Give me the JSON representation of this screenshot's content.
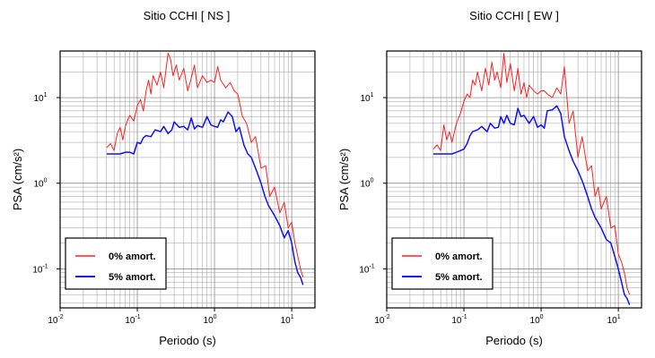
{
  "chart_data": [
    {
      "type": "line",
      "title": "Sitio CCHI [ NS ]",
      "xlabel": "Periodo (s)",
      "ylabel": "PSA (cm/s²)",
      "xscale": "log",
      "yscale": "log",
      "xlim": [
        0.01,
        20
      ],
      "ylim": [
        0.035,
        35
      ],
      "xticks": [
        {
          "label": "10",
          "exp": "-2"
        },
        {
          "label": "10",
          "exp": "-1"
        },
        {
          "label": "10",
          "exp": "0"
        },
        {
          "label": "10",
          "exp": "1"
        }
      ],
      "yticks": [
        {
          "label": "10",
          "exp": "-1"
        },
        {
          "label": "10",
          "exp": "0"
        },
        {
          "label": "10",
          "exp": "1"
        }
      ],
      "grid": true,
      "legend_position": "bottom-left",
      "series": [
        {
          "name": "0% amort.",
          "color": "#ff2020",
          "x": [
            0.04,
            0.045,
            0.05,
            0.055,
            0.06,
            0.065,
            0.07,
            0.075,
            0.08,
            0.09,
            0.1,
            0.11,
            0.12,
            0.13,
            0.14,
            0.15,
            0.16,
            0.18,
            0.2,
            0.22,
            0.25,
            0.27,
            0.29,
            0.32,
            0.35,
            0.4,
            0.45,
            0.5,
            0.55,
            0.6,
            0.7,
            0.8,
            0.9,
            1.0,
            1.1,
            1.2,
            1.4,
            1.6,
            1.8,
            2.0,
            2.3,
            2.6,
            3.0,
            3.4,
            4.0,
            4.6,
            5.2,
            6.0,
            7.0,
            8.0,
            9.0,
            10.0,
            11.0,
            12.0,
            13.0,
            14.0
          ],
          "y": [
            2.6,
            2.9,
            2.4,
            3.8,
            4.5,
            3.2,
            4.6,
            5.5,
            6.2,
            5.3,
            8.0,
            9.5,
            7.0,
            12.0,
            16.0,
            11.0,
            18.0,
            14.0,
            20.0,
            13.0,
            33.0,
            28.0,
            18.0,
            24.0,
            16.0,
            22.0,
            12.0,
            17.0,
            24.0,
            13.0,
            18.0,
            15.0,
            16.0,
            15.0,
            23.0,
            16.0,
            13.0,
            15.0,
            12.0,
            11.0,
            6.0,
            5.0,
            3.0,
            3.5,
            1.5,
            1.6,
            0.7,
            0.9,
            0.45,
            0.6,
            0.3,
            0.35,
            0.2,
            0.14,
            0.1,
            0.08
          ]
        },
        {
          "name": "5% amort.",
          "color": "#1010ff",
          "x": [
            0.04,
            0.05,
            0.06,
            0.07,
            0.08,
            0.09,
            0.1,
            0.11,
            0.12,
            0.13,
            0.15,
            0.17,
            0.2,
            0.22,
            0.25,
            0.28,
            0.3,
            0.35,
            0.4,
            0.45,
            0.5,
            0.55,
            0.6,
            0.7,
            0.8,
            0.9,
            1.0,
            1.1,
            1.2,
            1.3,
            1.5,
            1.7,
            1.9,
            2.1,
            2.4,
            2.7,
            3.0,
            3.5,
            4.0,
            4.5,
            5.0,
            6.0,
            7.0,
            8.0,
            9.0,
            10.0,
            11.0,
            12.0,
            13.0,
            14.0
          ],
          "y": [
            2.2,
            2.2,
            2.2,
            2.3,
            2.3,
            2.2,
            3.0,
            2.9,
            3.4,
            3.6,
            3.5,
            4.2,
            4.0,
            4.6,
            3.8,
            4.2,
            5.2,
            4.5,
            4.6,
            4.2,
            5.8,
            4.3,
            4.7,
            4.5,
            6.0,
            4.8,
            4.6,
            4.5,
            5.5,
            5.2,
            6.8,
            6.0,
            4.0,
            4.5,
            2.8,
            2.2,
            2.0,
            1.4,
            1.0,
            0.7,
            0.55,
            0.42,
            0.32,
            0.23,
            0.28,
            0.2,
            0.12,
            0.09,
            0.08,
            0.065
          ]
        }
      ]
    },
    {
      "type": "line",
      "title": "Sitio CCHI [ EW ]",
      "xlabel": "Periodo (s)",
      "ylabel": "PSA (cm/s²)",
      "xscale": "log",
      "yscale": "log",
      "xlim": [
        0.01,
        20
      ],
      "ylim": [
        0.035,
        35
      ],
      "xticks": [
        {
          "label": "10",
          "exp": "-2"
        },
        {
          "label": "10",
          "exp": "-1"
        },
        {
          "label": "10",
          "exp": "0"
        },
        {
          "label": "10",
          "exp": "1"
        }
      ],
      "yticks": [
        {
          "label": "10",
          "exp": "-1"
        },
        {
          "label": "10",
          "exp": "0"
        },
        {
          "label": "10",
          "exp": "1"
        }
      ],
      "grid": true,
      "legend_position": "bottom-left",
      "series": [
        {
          "name": "0% amort.",
          "color": "#ff2020",
          "x": [
            0.04,
            0.045,
            0.05,
            0.055,
            0.06,
            0.065,
            0.07,
            0.08,
            0.09,
            0.1,
            0.11,
            0.12,
            0.13,
            0.14,
            0.15,
            0.17,
            0.19,
            0.21,
            0.23,
            0.25,
            0.27,
            0.3,
            0.33,
            0.36,
            0.4,
            0.45,
            0.5,
            0.55,
            0.6,
            0.65,
            0.7,
            0.8,
            0.9,
            1.0,
            1.1,
            1.2,
            1.4,
            1.6,
            1.8,
            2.0,
            2.3,
            2.6,
            3.0,
            3.4,
            4.0,
            4.5,
            5.0,
            5.5,
            6.0,
            7.0,
            8.0,
            9.0,
            10.0,
            11.0,
            12.0,
            13.0,
            14.0
          ],
          "y": [
            2.5,
            2.8,
            2.4,
            4.8,
            3.2,
            4.0,
            3.0,
            5.0,
            6.5,
            9.0,
            11.0,
            10.0,
            16.0,
            14.0,
            20.0,
            12.0,
            22.0,
            14.0,
            26.0,
            16.0,
            20.0,
            13.0,
            33.0,
            15.0,
            25.0,
            12.0,
            22.0,
            11.0,
            15.0,
            10.0,
            14.0,
            12.0,
            11.0,
            12.0,
            12.0,
            11.0,
            10.0,
            13.0,
            11.0,
            23.0,
            5.0,
            7.0,
            2.0,
            3.5,
            1.4,
            1.6,
            0.7,
            0.9,
            0.5,
            0.7,
            0.3,
            0.32,
            0.15,
            0.12,
            0.09,
            0.06,
            0.05
          ]
        },
        {
          "name": "5% amort.",
          "color": "#1010ff",
          "x": [
            0.04,
            0.05,
            0.06,
            0.07,
            0.08,
            0.09,
            0.1,
            0.11,
            0.12,
            0.13,
            0.15,
            0.17,
            0.2,
            0.22,
            0.25,
            0.28,
            0.3,
            0.33,
            0.36,
            0.4,
            0.45,
            0.5,
            0.55,
            0.6,
            0.7,
            0.8,
            0.9,
            1.0,
            1.1,
            1.2,
            1.4,
            1.6,
            1.8,
            2.0,
            2.3,
            2.6,
            3.0,
            3.5,
            4.0,
            4.5,
            5.0,
            6.0,
            7.0,
            8.0,
            9.0,
            10.0,
            11.0,
            12.0,
            13.0,
            14.0
          ],
          "y": [
            2.2,
            2.2,
            2.2,
            2.2,
            2.3,
            2.4,
            2.5,
            2.9,
            3.6,
            4.0,
            4.2,
            4.6,
            4.0,
            5.0,
            4.4,
            4.5,
            6.0,
            5.0,
            6.2,
            5.0,
            4.8,
            7.5,
            6.0,
            6.2,
            5.0,
            6.0,
            4.5,
            4.8,
            4.4,
            7.0,
            7.2,
            8.0,
            6.5,
            3.5,
            2.4,
            1.8,
            1.4,
            1.0,
            0.7,
            0.5,
            0.4,
            0.3,
            0.22,
            0.2,
            0.14,
            0.1,
            0.07,
            0.05,
            0.045,
            0.038
          ]
        }
      ]
    }
  ]
}
